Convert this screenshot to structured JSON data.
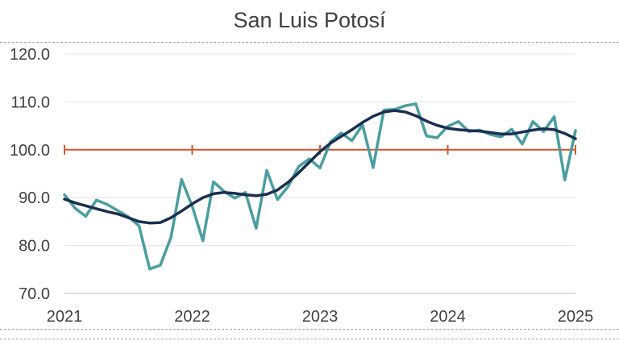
{
  "chart_data": {
    "type": "line",
    "title": "San Luis Potosí",
    "xlabel": "",
    "ylabel": "",
    "ylim": [
      70,
      120
    ],
    "xlim": [
      "2021-01",
      "2025-01"
    ],
    "y_ticks": [
      "70.0",
      "80.0",
      "90.0",
      "100.0",
      "110.0",
      "120.0"
    ],
    "x_ticks": [
      "2021",
      "2022",
      "2023",
      "2024",
      "2025"
    ],
    "grid": true,
    "legend": "none",
    "colors": {
      "series_1": "#4a9ea0",
      "series_2": "#1b2f52",
      "reference": "#d0562f"
    },
    "x": [
      "2021-01",
      "2021-02",
      "2021-03",
      "2021-04",
      "2021-05",
      "2021-06",
      "2021-07",
      "2021-08",
      "2021-09",
      "2021-10",
      "2021-11",
      "2021-12",
      "2022-01",
      "2022-02",
      "2022-03",
      "2022-04",
      "2022-05",
      "2022-06",
      "2022-07",
      "2022-08",
      "2022-09",
      "2022-10",
      "2022-11",
      "2022-12",
      "2023-01",
      "2023-02",
      "2023-03",
      "2023-04",
      "2023-05",
      "2023-06",
      "2023-07",
      "2023-08",
      "2023-09",
      "2023-10",
      "2023-11",
      "2023-12",
      "2024-01",
      "2024-02",
      "2024-03",
      "2024-04",
      "2024-05",
      "2024-06",
      "2024-07",
      "2024-08",
      "2024-09",
      "2024-10",
      "2024-11",
      "2024-12",
      "2025-01"
    ],
    "series": [
      {
        "values": [
          90.6,
          87.8,
          86.1,
          89.5,
          88.6,
          87.3,
          86.0,
          84.1,
          75.1,
          75.9,
          81.7,
          93.8,
          88.2,
          81.0,
          93.3,
          91.3,
          89.9,
          91.1,
          83.6,
          95.7,
          89.6,
          92.3,
          96.5,
          98.1,
          96.2,
          101.7,
          103.5,
          101.9,
          105.2,
          96.3,
          108.3,
          108.4,
          109.2,
          109.6,
          102.9,
          102.5,
          104.9,
          105.9,
          103.8,
          104.1,
          103.2,
          102.7,
          104.3,
          101.2,
          105.9,
          103.8,
          106.9,
          93.7,
          104.0
        ]
      },
      {
        "values": [
          89.7,
          88.9,
          88.3,
          87.7,
          87.1,
          86.6,
          85.8,
          85.0,
          84.7,
          84.8,
          85.8,
          87.2,
          88.7,
          90.0,
          90.8,
          91.1,
          90.9,
          90.6,
          90.4,
          90.7,
          91.6,
          93.2,
          95.2,
          97.4,
          99.6,
          101.4,
          102.8,
          104.2,
          105.7,
          107.0,
          107.9,
          108.2,
          107.9,
          107.1,
          106.0,
          105.1,
          104.5,
          104.2,
          104.0,
          103.9,
          103.6,
          103.3,
          103.3,
          103.7,
          104.1,
          104.4,
          104.2,
          103.4,
          102.3
        ]
      }
    ],
    "reference_line": {
      "y": 100,
      "x_markers": [
        "2021-01",
        "2022-01",
        "2023-01",
        "2024-01",
        "2025-01"
      ]
    }
  }
}
